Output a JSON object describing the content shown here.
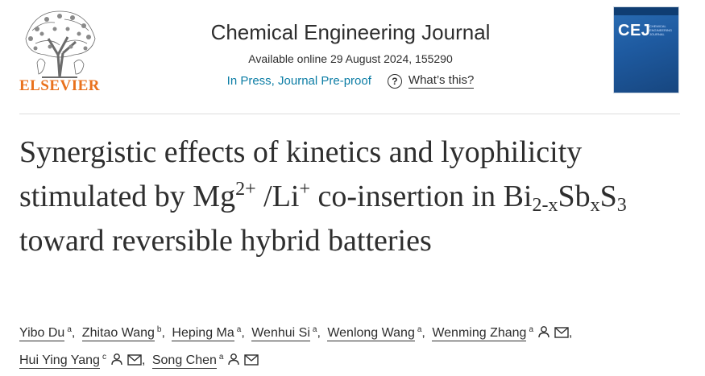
{
  "publisher": {
    "logo_text": "ELSEVIER",
    "logo_color": "#e9711c"
  },
  "journal": {
    "title": "Chemical Engineering Journal",
    "available": "Available online 29 August 2024, 155290",
    "status": "In Press, Journal Pre-proof",
    "whats_this": "What’s this?",
    "cover_text": "CEJ",
    "cover_subtitle": "CHEMICAL ENGINEERING JOURNAL"
  },
  "article": {
    "title_part1": "Synergistic effects of kinetics and lyophilicity stimulated by Mg",
    "mg_charge": "2+",
    "slash_li": " /Li",
    "li_charge": "+",
    "title_part2": " co-insertion in Bi",
    "bi_sub": "2-x",
    "sb": "Sb",
    "sb_sub": "x",
    "s": "S",
    "s_sub": "3",
    "title_part3": " toward reversible hybrid batteries"
  },
  "authors": [
    {
      "name": "Yibo Du",
      "aff": "a"
    },
    {
      "name": "Zhitao Wang",
      "aff": "b"
    },
    {
      "name": "Heping Ma",
      "aff": "a"
    },
    {
      "name": "Wenhui Si",
      "aff": "a"
    },
    {
      "name": "Wenlong Wang",
      "aff": "a"
    },
    {
      "name": "Wenming Zhang",
      "aff": "a"
    },
    {
      "name": "Hui Ying Yang",
      "aff": "c"
    },
    {
      "name": "Song Chen",
      "aff": "a"
    }
  ],
  "colors": {
    "accent_link": "#0c7da5",
    "text": "#2e2e2e"
  }
}
